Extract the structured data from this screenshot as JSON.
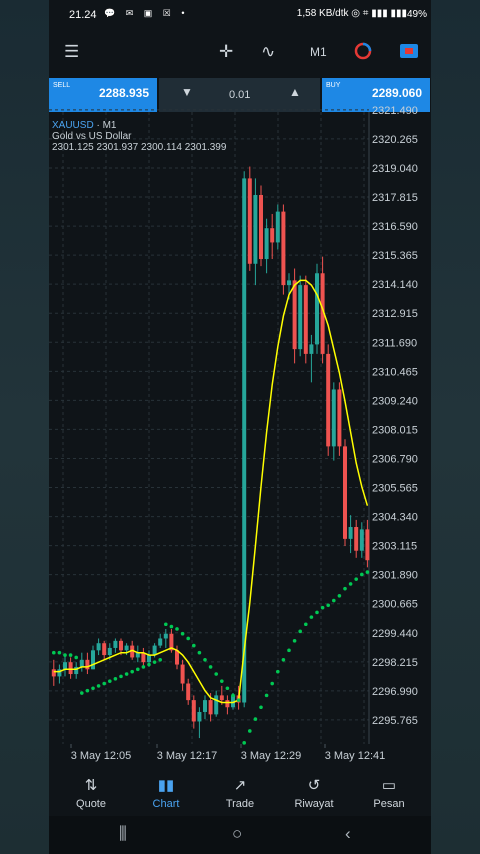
{
  "status": {
    "time": "21.24",
    "notifications": "💬 ✉ ▣ ☒ •",
    "net": "1,58 KB/dtk",
    "battery": "49%"
  },
  "toolbar": {
    "menu_icon": "menu-icon",
    "crosshair_icon": "crosshair-icon",
    "indicators_icon": "indicators-icon",
    "timeframe": "M1",
    "objects_icon": "objects-icon",
    "trade_icon": "trade-icon"
  },
  "trade": {
    "sell_label": "SELL",
    "sell_price": "2288.935",
    "buy_label": "BUY",
    "buy_price": "2289.060",
    "lot": "0.01"
  },
  "chart_info": {
    "symbol": "XAUUSD",
    "timeframe": "M1",
    "description": "Gold vs US Dollar",
    "ohlc": "2301.125 2301.937 2300.114 2301.399"
  },
  "nav": {
    "items": [
      {
        "label": "Quote",
        "icon": "⇅"
      },
      {
        "label": "Chart",
        "icon": "▮▮"
      },
      {
        "label": "Trade",
        "icon": "↗"
      },
      {
        "label": "Riwayat",
        "icon": "↺"
      },
      {
        "label": "Pesan",
        "icon": "▭"
      }
    ],
    "active": "Chart"
  },
  "colors": {
    "bull": "#26a69a",
    "bear": "#ef5350",
    "ma": "#ffff00",
    "sar": "#00c853",
    "accent": "#1e88e5"
  },
  "chart_data": {
    "type": "candlestick",
    "symbol": "XAUUSD",
    "timeframe": "M1",
    "ylim": [
      2294.75,
      2321.4
    ],
    "price_labels": [
      "2321.490",
      "2320.265",
      "2319.040",
      "2317.815",
      "2316.590",
      "2315.365",
      "2314.140",
      "2312.915",
      "2311.690",
      "2310.465",
      "2309.240",
      "2308.015",
      "2306.790",
      "2305.565",
      "2304.340",
      "2303.115",
      "2301.890",
      "2300.665",
      "2299.440",
      "2298.215",
      "2296.990",
      "2295.765"
    ],
    "time_labels": [
      "3 May 12:05",
      "3 May 12:17",
      "3 May 12:29",
      "3 May 12:41"
    ],
    "candles": [
      [
        2297.9,
        2298.3,
        2297.2,
        2297.6
      ],
      [
        2297.6,
        2298.1,
        2297.3,
        2297.9
      ],
      [
        2297.9,
        2298.5,
        2297.6,
        2298.2
      ],
      [
        2298.2,
        2298.4,
        2297.5,
        2297.7
      ],
      [
        2297.7,
        2298.2,
        2297.5,
        2298.0
      ],
      [
        2298.0,
        2298.6,
        2297.8,
        2298.3
      ],
      [
        2298.3,
        2298.6,
        2297.7,
        2297.9
      ],
      [
        2297.9,
        2298.9,
        2297.9,
        2298.7
      ],
      [
        2298.7,
        2299.2,
        2298.5,
        2299.0
      ],
      [
        2299.0,
        2299.1,
        2298.3,
        2298.5
      ],
      [
        2298.5,
        2299.0,
        2298.3,
        2298.8
      ],
      [
        2298.8,
        2299.2,
        2298.6,
        2299.1
      ],
      [
        2299.1,
        2299.2,
        2298.5,
        2298.7
      ],
      [
        2298.7,
        2299.0,
        2298.5,
        2298.9
      ],
      [
        2298.9,
        2299.1,
        2298.3,
        2298.4
      ],
      [
        2298.4,
        2298.9,
        2298.2,
        2298.6
      ],
      [
        2298.6,
        2298.8,
        2298.0,
        2298.2
      ],
      [
        2298.2,
        2298.7,
        2298.0,
        2298.5
      ],
      [
        2298.5,
        2299.0,
        2298.4,
        2298.9
      ],
      [
        2298.9,
        2299.4,
        2298.8,
        2299.2
      ],
      [
        2299.2,
        2299.6,
        2298.8,
        2299.4
      ],
      [
        2299.4,
        2299.6,
        2298.6,
        2298.7
      ],
      [
        2298.7,
        2298.9,
        2297.9,
        2298.1
      ],
      [
        2298.1,
        2298.3,
        2297.0,
        2297.3
      ],
      [
        2297.3,
        2297.5,
        2296.4,
        2296.6
      ],
      [
        2296.6,
        2296.8,
        2295.4,
        2295.7
      ],
      [
        2295.7,
        2296.3,
        2295.0,
        2296.1
      ],
      [
        2296.1,
        2296.8,
        2295.8,
        2296.6
      ],
      [
        2296.6,
        2296.9,
        2295.7,
        2296.0
      ],
      [
        2296.0,
        2297.0,
        2295.9,
        2296.8
      ],
      [
        2296.8,
        2297.2,
        2296.4,
        2296.6
      ],
      [
        2296.6,
        2296.8,
        2296.0,
        2296.3
      ],
      [
        2296.3,
        2296.9,
        2296.2,
        2296.8
      ],
      [
        2296.8,
        2297.2,
        2296.2,
        2296.5
      ],
      [
        2296.5,
        2318.9,
        2296.3,
        2318.6
      ],
      [
        2318.6,
        2319.1,
        2314.7,
        2315.0
      ],
      [
        2315.0,
        2318.6,
        2314.1,
        2317.9
      ],
      [
        2317.9,
        2318.3,
        2314.9,
        2315.2
      ],
      [
        2315.2,
        2316.9,
        2314.6,
        2316.5
      ],
      [
        2316.5,
        2317.1,
        2315.2,
        2315.9
      ],
      [
        2315.9,
        2317.5,
        2315.6,
        2317.2
      ],
      [
        2317.2,
        2317.5,
        2313.7,
        2314.1
      ],
      [
        2314.1,
        2314.6,
        2313.5,
        2314.3
      ],
      [
        2314.3,
        2314.8,
        2310.8,
        2311.4
      ],
      [
        2311.4,
        2314.5,
        2311.1,
        2314.1
      ],
      [
        2314.1,
        2314.5,
        2310.8,
        2311.2
      ],
      [
        2311.2,
        2312.0,
        2310.0,
        2311.6
      ],
      [
        2311.6,
        2315.0,
        2311.2,
        2314.6
      ],
      [
        2314.6,
        2315.3,
        2310.8,
        2311.2
      ],
      [
        2311.2,
        2311.6,
        2306.9,
        2307.3
      ],
      [
        2307.3,
        2310.0,
        2306.7,
        2309.7
      ],
      [
        2309.7,
        2310.0,
        2306.9,
        2307.3
      ],
      [
        2307.3,
        2307.6,
        2303.1,
        2303.4
      ],
      [
        2303.4,
        2304.4,
        2302.8,
        2303.9
      ],
      [
        2303.9,
        2304.2,
        2302.6,
        2302.9
      ],
      [
        2302.9,
        2304.1,
        2302.6,
        2303.8
      ],
      [
        2303.8,
        2304.2,
        2302.2,
        2302.5
      ]
    ],
    "ma_values": [
      2297.8,
      2297.8,
      2297.9,
      2297.9,
      2297.9,
      2298.0,
      2298.0,
      2298.1,
      2298.2,
      2298.3,
      2298.4,
      2298.5,
      2298.6,
      2298.6,
      2298.7,
      2298.6,
      2298.6,
      2298.5,
      2298.5,
      2298.6,
      2298.7,
      2298.8,
      2298.7,
      2298.5,
      2298.2,
      2297.8,
      2297.4,
      2297.0,
      2296.7,
      2296.6,
      2296.5,
      2296.5,
      2296.5,
      2296.6,
      2298.7,
      2300.7,
      2303.1,
      2305.6,
      2307.9,
      2309.9,
      2311.5,
      2312.8,
      2313.7,
      2314.1,
      2314.3,
      2314.3,
      2314.1,
      2313.7,
      2313.1,
      2312.4,
      2311.4,
      2310.4,
      2309.2,
      2307.9,
      2306.6,
      2305.6,
      2304.8
    ],
    "sar_values": [
      2298.6,
      2298.6,
      2298.5,
      2298.5,
      2298.4,
      2296.9,
      2297.0,
      2297.1,
      2297.2,
      2297.3,
      2297.4,
      2297.5,
      2297.6,
      2297.7,
      2297.8,
      2297.9,
      2298.0,
      2298.1,
      2298.2,
      2298.3,
      2299.8,
      2299.7,
      2299.6,
      2299.4,
      2299.2,
      2298.9,
      2298.6,
      2298.3,
      2298.0,
      2297.7,
      2297.4,
      2297.1,
      2296.8,
      2296.6,
      2294.8,
      2295.3,
      2295.8,
      2296.3,
      2296.8,
      2297.3,
      2297.8,
      2298.3,
      2298.7,
      2299.1,
      2299.5,
      2299.8,
      2300.1,
      2300.3,
      2300.5,
      2300.6,
      2300.8,
      2301.0,
      2301.3,
      2301.5,
      2301.7,
      2301.9,
      2302.0
    ]
  }
}
